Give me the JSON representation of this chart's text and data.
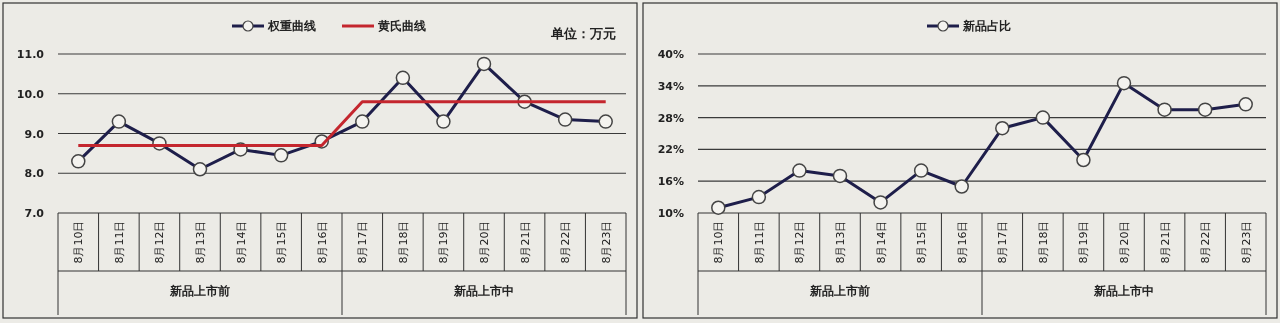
{
  "chart_data": [
    {
      "type": "line",
      "ylabel": "单位：万元",
      "categories": [
        "8月10日",
        "8月11日",
        "8月12日",
        "8月13日",
        "8月14日",
        "8月15日",
        "8月16日",
        "8月17日",
        "8月18日",
        "8月19日",
        "8月20日",
        "8月21日",
        "8月22日",
        "8月23日"
      ],
      "series": [
        {
          "name": "权重曲线",
          "color": "#1e1e4a",
          "marker": "circle",
          "values": [
            8.3,
            9.3,
            8.75,
            8.1,
            8.6,
            8.45,
            8.8,
            9.3,
            10.4,
            9.3,
            10.75,
            9.8,
            9.35,
            9.3
          ]
        },
        {
          "name": "黄氏曲线",
          "color": "#c4262e",
          "marker": "none",
          "values": [
            8.7,
            8.7,
            8.7,
            8.7,
            8.7,
            8.7,
            8.7,
            9.8,
            9.8,
            9.8,
            9.8,
            9.8,
            9.8,
            9.8
          ]
        }
      ],
      "ylim": [
        7,
        11
      ],
      "yticks": [
        {
          "value": 7,
          "label": "7.0"
        },
        {
          "value": 8,
          "label": "8.0"
        },
        {
          "value": 9,
          "label": "9.0"
        },
        {
          "value": 10,
          "label": "10.0"
        },
        {
          "value": 11,
          "label": "11.0"
        }
      ],
      "grid": "y",
      "legend": "top",
      "annotations": [
        "新品上市前",
        "新品上市中"
      ]
    },
    {
      "type": "line",
      "categories": [
        "8月10日",
        "8月11日",
        "8月12日",
        "8月13日",
        "8月14日",
        "8月15日",
        "8月16日",
        "8月17日",
        "8月18日",
        "8月19日",
        "8月20日",
        "8月21日",
        "8月22日",
        "8月23日"
      ],
      "series": [
        {
          "name": "新品占比",
          "color": "#1e1e4a",
          "marker": "circle",
          "values": [
            11,
            13,
            18,
            17,
            12,
            18,
            15,
            26,
            28,
            20,
            34.5,
            29.5,
            29.5,
            30.5
          ]
        }
      ],
      "ylim": [
        10,
        40
      ],
      "yticks": [
        {
          "value": 10,
          "label": "10%"
        },
        {
          "value": 16,
          "label": "16%"
        },
        {
          "value": 22,
          "label": "22%"
        },
        {
          "value": 28,
          "label": "28%"
        },
        {
          "value": 34,
          "label": "34%"
        },
        {
          "value": 40,
          "label": "40%"
        }
      ],
      "grid": "y",
      "legend": "top",
      "annotations": [
        "新品上市前",
        "新品上市中"
      ]
    }
  ]
}
